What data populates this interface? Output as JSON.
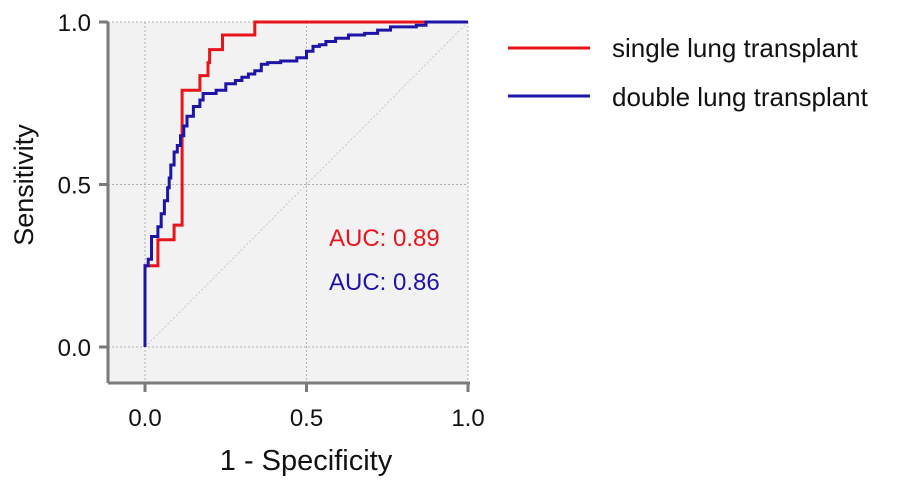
{
  "chart_data": {
    "type": "line",
    "title": "",
    "xlabel": "1 - Specificity",
    "ylabel": "Sensitivity",
    "xlim": [
      0,
      1
    ],
    "ylim": [
      0,
      1
    ],
    "xticks": [
      "0.0",
      "0.5",
      "1.0"
    ],
    "yticks": [
      "0.0",
      "0.5",
      "1.0"
    ],
    "grid": true,
    "legend_position": "right",
    "reference_line": "diagonal",
    "annotations": [
      {
        "text": "AUC: 0.89",
        "series": "single lung transplant",
        "color": "#e8141b"
      },
      {
        "text": "AUC: 0.86",
        "series": "double lung transplant",
        "color": "#1f14a8"
      }
    ],
    "series": [
      {
        "name": "single lung transplant",
        "color": "#e8141b",
        "points": [
          [
            0,
            0
          ],
          [
            0,
            0.25
          ],
          [
            0.04,
            0.25
          ],
          [
            0.04,
            0.33
          ],
          [
            0.09,
            0.33
          ],
          [
            0.09,
            0.375
          ],
          [
            0.115,
            0.375
          ],
          [
            0.115,
            0.79
          ],
          [
            0.17,
            0.79
          ],
          [
            0.17,
            0.835
          ],
          [
            0.195,
            0.835
          ],
          [
            0.195,
            0.875
          ],
          [
            0.2,
            0.875
          ],
          [
            0.2,
            0.915
          ],
          [
            0.24,
            0.915
          ],
          [
            0.24,
            0.96
          ],
          [
            0.34,
            0.96
          ],
          [
            0.34,
            1.0
          ],
          [
            0.84,
            1.0
          ],
          [
            0.84,
            1.0
          ],
          [
            1.0,
            1.0
          ]
        ]
      },
      {
        "name": "double lung transplant",
        "color": "#1f14a8",
        "points": [
          [
            0,
            0
          ],
          [
            0,
            0.25
          ],
          [
            0.01,
            0.25
          ],
          [
            0.01,
            0.27
          ],
          [
            0.02,
            0.27
          ],
          [
            0.02,
            0.34
          ],
          [
            0.04,
            0.34
          ],
          [
            0.04,
            0.37
          ],
          [
            0.05,
            0.37
          ],
          [
            0.05,
            0.41
          ],
          [
            0.06,
            0.41
          ],
          [
            0.06,
            0.45
          ],
          [
            0.07,
            0.45
          ],
          [
            0.07,
            0.49
          ],
          [
            0.075,
            0.49
          ],
          [
            0.075,
            0.52
          ],
          [
            0.08,
            0.52
          ],
          [
            0.08,
            0.56
          ],
          [
            0.09,
            0.56
          ],
          [
            0.09,
            0.6
          ],
          [
            0.1,
            0.6
          ],
          [
            0.1,
            0.62
          ],
          [
            0.11,
            0.62
          ],
          [
            0.11,
            0.65
          ],
          [
            0.12,
            0.65
          ],
          [
            0.12,
            0.68
          ],
          [
            0.13,
            0.68
          ],
          [
            0.13,
            0.71
          ],
          [
            0.15,
            0.71
          ],
          [
            0.15,
            0.74
          ],
          [
            0.17,
            0.74
          ],
          [
            0.17,
            0.76
          ],
          [
            0.18,
            0.76
          ],
          [
            0.18,
            0.78
          ],
          [
            0.22,
            0.78
          ],
          [
            0.22,
            0.79
          ],
          [
            0.25,
            0.79
          ],
          [
            0.25,
            0.81
          ],
          [
            0.28,
            0.81
          ],
          [
            0.28,
            0.82
          ],
          [
            0.3,
            0.82
          ],
          [
            0.3,
            0.83
          ],
          [
            0.32,
            0.83
          ],
          [
            0.32,
            0.84
          ],
          [
            0.34,
            0.84
          ],
          [
            0.34,
            0.85
          ],
          [
            0.36,
            0.85
          ],
          [
            0.36,
            0.87
          ],
          [
            0.38,
            0.87
          ],
          [
            0.38,
            0.875
          ],
          [
            0.42,
            0.875
          ],
          [
            0.42,
            0.88
          ],
          [
            0.47,
            0.88
          ],
          [
            0.47,
            0.89
          ],
          [
            0.5,
            0.89
          ],
          [
            0.5,
            0.9
          ],
          [
            0.5,
            0.9
          ],
          [
            0.5,
            0.91
          ],
          [
            0.52,
            0.91
          ],
          [
            0.52,
            0.925
          ],
          [
            0.54,
            0.925
          ],
          [
            0.54,
            0.93
          ],
          [
            0.56,
            0.93
          ],
          [
            0.56,
            0.94
          ],
          [
            0.59,
            0.94
          ],
          [
            0.59,
            0.95
          ],
          [
            0.63,
            0.95
          ],
          [
            0.63,
            0.96
          ],
          [
            0.68,
            0.96
          ],
          [
            0.68,
            0.965
          ],
          [
            0.72,
            0.965
          ],
          [
            0.72,
            0.975
          ],
          [
            0.76,
            0.975
          ],
          [
            0.76,
            0.985
          ],
          [
            0.84,
            0.985
          ],
          [
            0.84,
            0.99
          ],
          [
            0.87,
            0.99
          ],
          [
            0.87,
            1.0
          ],
          [
            1.0,
            1.0
          ]
        ]
      }
    ]
  }
}
